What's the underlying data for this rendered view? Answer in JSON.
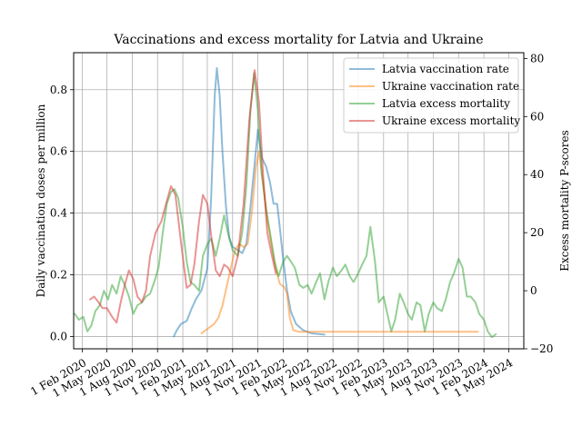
{
  "chart_data": {
    "type": "line",
    "title": "Vaccinations and excess mortality for Latvia and Ukraine",
    "ylabel_left": "Daily vaccination doses per million",
    "ylabel_right": "Excess mortality P-scores",
    "ylim_left": [
      -0.04,
      0.92
    ],
    "ylim_right": [
      -20,
      82
    ],
    "xlim": [
      "2020-01-01",
      "2024-06-25"
    ],
    "yticks_left": [
      0.0,
      0.2,
      0.4,
      0.6,
      0.8
    ],
    "yticks_left_labels": [
      "0.0",
      "0.2",
      "0.4",
      "0.6",
      "0.8"
    ],
    "yticks_right": [
      -20,
      0,
      20,
      40,
      60,
      80
    ],
    "yticks_right_labels": [
      "−20",
      "0",
      "20",
      "40",
      "60",
      "80"
    ],
    "xticks": [
      "2020-02-01",
      "2020-05-01",
      "2020-08-01",
      "2020-11-01",
      "2021-02-01",
      "2021-05-01",
      "2021-08-01",
      "2021-11-01",
      "2022-02-01",
      "2022-05-01",
      "2022-08-01",
      "2022-11-01",
      "2023-02-01",
      "2023-05-01",
      "2023-08-01",
      "2023-11-01",
      "2024-02-01",
      "2024-05-01"
    ],
    "xtick_labels": [
      "1 Feb 2020",
      "1 May 2020",
      "1 Aug 2020",
      "1 Nov 2020",
      "1 Feb 2021",
      "1 May 2021",
      "1 Aug 2021",
      "1 Nov 2021",
      "1 Feb 2022",
      "1 May 2022",
      "1 Aug 2022",
      "1 Nov 2022",
      "1 Feb 2023",
      "1 May 2023",
      "1 Aug 2023",
      "1 Nov 2023",
      "1 Feb 2024",
      "1 May 2024"
    ],
    "grid": true,
    "legend_position": "top-right",
    "series": [
      {
        "name": "Latvia vaccination rate",
        "axis": "left",
        "color": "#1f77b4",
        "points": [
          [
            "2020-12-30",
            0.0
          ],
          [
            "2021-01-10",
            0.02
          ],
          [
            "2021-01-25",
            0.04
          ],
          [
            "2021-02-15",
            0.05
          ],
          [
            "2021-03-05",
            0.09
          ],
          [
            "2021-03-20",
            0.12
          ],
          [
            "2021-04-10",
            0.15
          ],
          [
            "2021-05-01",
            0.22
          ],
          [
            "2021-05-15",
            0.45
          ],
          [
            "2021-05-28",
            0.78
          ],
          [
            "2021-06-05",
            0.87
          ],
          [
            "2021-06-15",
            0.78
          ],
          [
            "2021-06-25",
            0.6
          ],
          [
            "2021-07-08",
            0.42
          ],
          [
            "2021-07-20",
            0.32
          ],
          [
            "2021-08-01",
            0.29
          ],
          [
            "2021-08-20",
            0.28
          ],
          [
            "2021-09-05",
            0.27
          ],
          [
            "2021-09-20",
            0.3
          ],
          [
            "2021-10-05",
            0.42
          ],
          [
            "2021-10-20",
            0.56
          ],
          [
            "2021-11-01",
            0.67
          ],
          [
            "2021-11-15",
            0.58
          ],
          [
            "2021-12-01",
            0.55
          ],
          [
            "2021-12-15",
            0.5
          ],
          [
            "2021-12-28",
            0.43
          ],
          [
            "2022-01-10",
            0.43
          ],
          [
            "2022-01-20",
            0.35
          ],
          [
            "2022-02-01",
            0.25
          ],
          [
            "2022-02-15",
            0.15
          ],
          [
            "2022-03-01",
            0.08
          ],
          [
            "2022-03-20",
            0.04
          ],
          [
            "2022-04-15",
            0.02
          ],
          [
            "2022-05-15",
            0.01
          ],
          [
            "2022-07-01",
            0.006
          ]
        ]
      },
      {
        "name": "Ukraine vaccination rate",
        "axis": "left",
        "color": "#ff7f0e",
        "points": [
          [
            "2021-04-10",
            0.01
          ],
          [
            "2021-04-25",
            0.02
          ],
          [
            "2021-05-10",
            0.03
          ],
          [
            "2021-05-25",
            0.04
          ],
          [
            "2021-06-10",
            0.06
          ],
          [
            "2021-06-25",
            0.1
          ],
          [
            "2021-07-10",
            0.16
          ],
          [
            "2021-07-25",
            0.22
          ],
          [
            "2021-08-10",
            0.28
          ],
          [
            "2021-08-25",
            0.3
          ],
          [
            "2021-09-10",
            0.29
          ],
          [
            "2021-09-25",
            0.3
          ],
          [
            "2021-10-10",
            0.4
          ],
          [
            "2021-10-25",
            0.55
          ],
          [
            "2021-11-05",
            0.6
          ],
          [
            "2021-11-20",
            0.5
          ],
          [
            "2021-12-05",
            0.38
          ],
          [
            "2021-12-20",
            0.3
          ],
          [
            "2022-01-05",
            0.22
          ],
          [
            "2022-01-20",
            0.17
          ],
          [
            "2022-02-05",
            0.16
          ],
          [
            "2022-02-15",
            0.14
          ],
          [
            "2022-02-25",
            0.06
          ],
          [
            "2022-03-10",
            0.02
          ],
          [
            "2022-04-01",
            0.015
          ],
          [
            "2022-08-01",
            0.015
          ],
          [
            "2023-01-01",
            0.015
          ],
          [
            "2023-07-01",
            0.015
          ],
          [
            "2024-01-10",
            0.015
          ]
        ]
      },
      {
        "name": "Latvia excess mortality",
        "axis": "right",
        "color": "#2ca02c",
        "points": [
          [
            "2020-01-05",
            -8
          ],
          [
            "2020-01-20",
            -10
          ],
          [
            "2020-02-05",
            -9
          ],
          [
            "2020-02-20",
            -14
          ],
          [
            "2020-03-05",
            -12
          ],
          [
            "2020-03-20",
            -7
          ],
          [
            "2020-04-05",
            -5
          ],
          [
            "2020-04-20",
            0
          ],
          [
            "2020-05-05",
            -3
          ],
          [
            "2020-05-20",
            2
          ],
          [
            "2020-06-05",
            -1
          ],
          [
            "2020-06-20",
            5
          ],
          [
            "2020-07-05",
            2
          ],
          [
            "2020-07-20",
            -2
          ],
          [
            "2020-08-05",
            -8
          ],
          [
            "2020-08-20",
            -5
          ],
          [
            "2020-09-05",
            -4
          ],
          [
            "2020-09-20",
            -2
          ],
          [
            "2020-10-05",
            -1
          ],
          [
            "2020-10-20",
            3
          ],
          [
            "2020-11-05",
            8
          ],
          [
            "2020-11-20",
            20
          ],
          [
            "2020-12-05",
            30
          ],
          [
            "2020-12-20",
            34
          ],
          [
            "2021-01-01",
            35
          ],
          [
            "2021-01-15",
            32
          ],
          [
            "2021-02-01",
            22
          ],
          [
            "2021-02-15",
            10
          ],
          [
            "2021-03-01",
            3
          ],
          [
            "2021-03-15",
            2
          ],
          [
            "2021-04-01",
            0
          ],
          [
            "2021-04-15",
            12
          ],
          [
            "2021-05-01",
            16
          ],
          [
            "2021-05-15",
            18
          ],
          [
            "2021-06-01",
            12
          ],
          [
            "2021-06-15",
            18
          ],
          [
            "2021-07-01",
            26
          ],
          [
            "2021-07-15",
            20
          ],
          [
            "2021-08-01",
            14
          ],
          [
            "2021-08-20",
            12
          ],
          [
            "2021-09-05",
            20
          ],
          [
            "2021-09-20",
            36
          ],
          [
            "2021-10-05",
            62
          ],
          [
            "2021-10-18",
            75
          ],
          [
            "2021-11-01",
            62
          ],
          [
            "2021-11-15",
            40
          ],
          [
            "2021-12-01",
            28
          ],
          [
            "2021-12-15",
            20
          ],
          [
            "2022-01-01",
            10
          ],
          [
            "2022-01-15",
            5
          ],
          [
            "2022-02-01",
            10
          ],
          [
            "2022-02-15",
            12
          ],
          [
            "2022-03-01",
            10
          ],
          [
            "2022-03-15",
            8
          ],
          [
            "2022-04-01",
            2
          ],
          [
            "2022-04-15",
            1
          ],
          [
            "2022-05-01",
            2
          ],
          [
            "2022-05-15",
            -1
          ],
          [
            "2022-06-01",
            3
          ],
          [
            "2022-06-15",
            6
          ],
          [
            "2022-07-01",
            -3
          ],
          [
            "2022-07-15",
            3
          ],
          [
            "2022-08-01",
            8
          ],
          [
            "2022-08-15",
            5
          ],
          [
            "2022-09-01",
            7
          ],
          [
            "2022-09-15",
            9
          ],
          [
            "2022-10-01",
            5
          ],
          [
            "2022-10-15",
            3
          ],
          [
            "2022-11-01",
            6
          ],
          [
            "2022-11-15",
            9
          ],
          [
            "2022-12-01",
            12
          ],
          [
            "2022-12-15",
            22
          ],
          [
            "2023-01-01",
            10
          ],
          [
            "2023-01-15",
            -4
          ],
          [
            "2023-02-01",
            -2
          ],
          [
            "2023-02-15",
            -8
          ],
          [
            "2023-03-01",
            -14
          ],
          [
            "2023-03-15",
            -10
          ],
          [
            "2023-04-01",
            -1
          ],
          [
            "2023-04-15",
            -4
          ],
          [
            "2023-05-01",
            -8
          ],
          [
            "2023-05-15",
            -10
          ],
          [
            "2023-06-01",
            -4
          ],
          [
            "2023-06-15",
            -5
          ],
          [
            "2023-07-01",
            -14
          ],
          [
            "2023-07-15",
            -8
          ],
          [
            "2023-08-01",
            -4
          ],
          [
            "2023-08-15",
            -6
          ],
          [
            "2023-09-01",
            -7
          ],
          [
            "2023-09-15",
            -3
          ],
          [
            "2023-10-01",
            3
          ],
          [
            "2023-10-15",
            6
          ],
          [
            "2023-11-01",
            11
          ],
          [
            "2023-11-15",
            8
          ],
          [
            "2023-12-01",
            -2
          ],
          [
            "2023-12-15",
            -2
          ],
          [
            "2024-01-01",
            -4
          ],
          [
            "2024-01-15",
            -8
          ],
          [
            "2024-02-01",
            -10
          ],
          [
            "2024-02-15",
            -14
          ],
          [
            "2024-03-01",
            -16
          ],
          [
            "2024-03-15",
            -15
          ]
        ]
      },
      {
        "name": "Ukraine excess mortality",
        "axis": "right",
        "color": "#d62728",
        "points": [
          [
            "2020-03-01",
            -3
          ],
          [
            "2020-03-15",
            -2
          ],
          [
            "2020-04-01",
            -4
          ],
          [
            "2020-04-15",
            -6
          ],
          [
            "2020-05-01",
            -6
          ],
          [
            "2020-05-20",
            -9
          ],
          [
            "2020-06-05",
            -11
          ],
          [
            "2020-06-20",
            -4
          ],
          [
            "2020-07-05",
            2
          ],
          [
            "2020-07-20",
            7
          ],
          [
            "2020-08-05",
            4
          ],
          [
            "2020-08-20",
            -2
          ],
          [
            "2020-09-05",
            -4
          ],
          [
            "2020-09-20",
            0
          ],
          [
            "2020-10-05",
            12
          ],
          [
            "2020-10-25",
            20
          ],
          [
            "2020-11-15",
            24
          ],
          [
            "2020-12-05",
            31
          ],
          [
            "2020-12-20",
            36
          ],
          [
            "2021-01-05",
            33
          ],
          [
            "2021-01-25",
            17
          ],
          [
            "2021-02-15",
            1
          ],
          [
            "2021-03-01",
            2
          ],
          [
            "2021-03-15",
            9
          ],
          [
            "2021-04-01",
            24
          ],
          [
            "2021-04-15",
            33
          ],
          [
            "2021-05-01",
            30
          ],
          [
            "2021-05-15",
            19
          ],
          [
            "2021-06-01",
            7
          ],
          [
            "2021-06-15",
            5
          ],
          [
            "2021-07-01",
            9
          ],
          [
            "2021-07-15",
            8
          ],
          [
            "2021-08-01",
            5
          ],
          [
            "2021-08-20",
            12
          ],
          [
            "2021-09-10",
            30
          ],
          [
            "2021-10-01",
            59
          ],
          [
            "2021-10-20",
            76
          ],
          [
            "2021-11-05",
            65
          ],
          [
            "2021-11-20",
            40
          ],
          [
            "2021-12-05",
            20
          ],
          [
            "2021-12-20",
            13
          ],
          [
            "2022-01-05",
            6
          ]
        ]
      }
    ]
  }
}
